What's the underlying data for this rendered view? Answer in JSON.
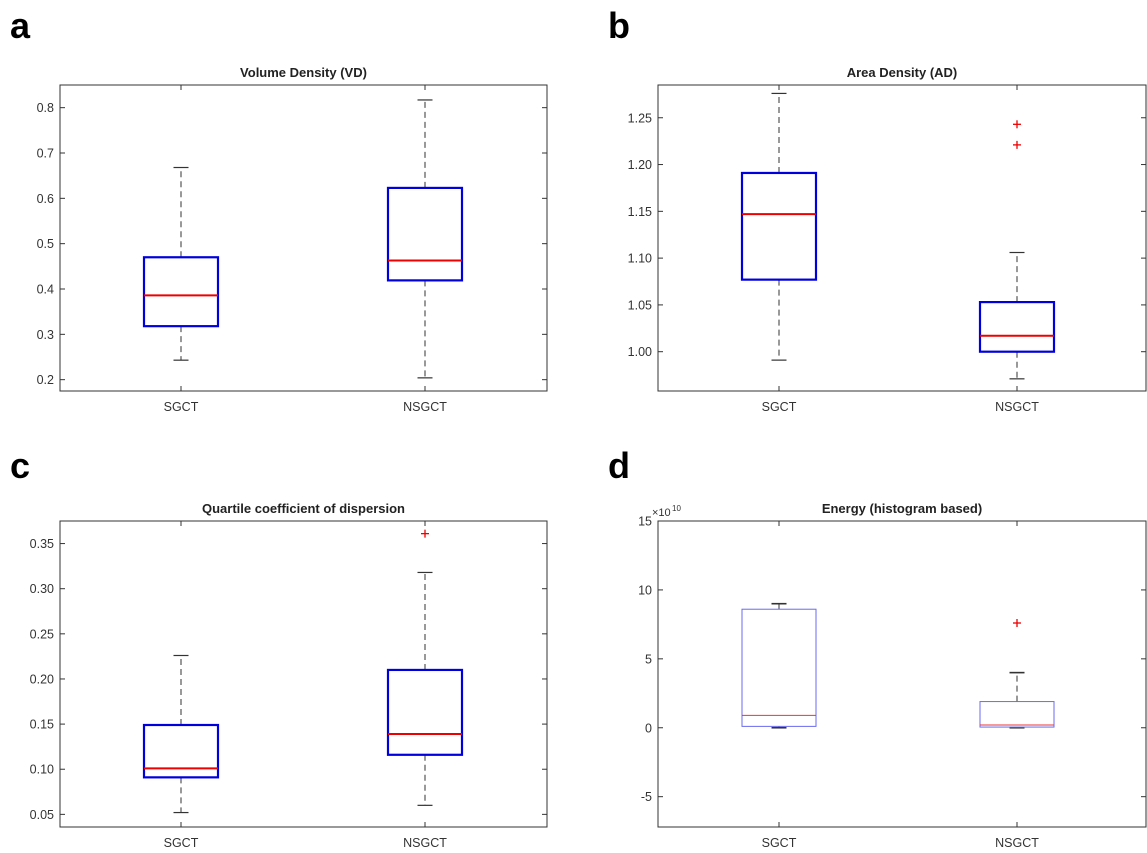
{
  "panel_letters": [
    "a",
    "b",
    "c",
    "d"
  ],
  "chart_data": [
    {
      "type": "box",
      "title": "Volume Density (VD)",
      "categories": [
        "SGCT",
        "NSGCT"
      ],
      "ylim": [
        0.175,
        0.85
      ],
      "yticks": [
        0.2,
        0.3,
        0.4,
        0.5,
        0.6,
        0.7,
        0.8
      ],
      "ytick_labels": [
        "0.2",
        "0.3",
        "0.4",
        "0.5",
        "0.6",
        "0.7",
        "0.8"
      ],
      "style": "bold",
      "boxes": [
        {
          "category": "SGCT",
          "min": 0.243,
          "q1": 0.318,
          "median": 0.386,
          "q3": 0.47,
          "max": 0.668,
          "outliers": []
        },
        {
          "category": "NSGCT",
          "min": 0.204,
          "q1": 0.419,
          "median": 0.463,
          "q3": 0.623,
          "max": 0.817,
          "outliers": []
        }
      ],
      "colors": {
        "box": "#0000dd",
        "median": "#ee0000",
        "whisker": "#333333",
        "outlier": "#ee0000"
      }
    },
    {
      "type": "box",
      "title": "Area Density (AD)",
      "categories": [
        "SGCT",
        "NSGCT"
      ],
      "ylim": [
        0.958,
        1.285
      ],
      "yticks": [
        1.0,
        1.05,
        1.1,
        1.15,
        1.2,
        1.25
      ],
      "ytick_labels": [
        "1.00",
        "1.05",
        "1.10",
        "1.15",
        "1.20",
        "1.25"
      ],
      "style": "bold",
      "boxes": [
        {
          "category": "SGCT",
          "min": 0.991,
          "q1": 1.077,
          "median": 1.147,
          "q3": 1.191,
          "max": 1.276,
          "outliers": []
        },
        {
          "category": "NSGCT",
          "min": 0.971,
          "q1": 1.0,
          "median": 1.017,
          "q3": 1.053,
          "max": 1.106,
          "outliers": [
            1.221,
            1.243
          ]
        }
      ],
      "colors": {
        "box": "#0000dd",
        "median": "#ee0000",
        "whisker": "#333333",
        "outlier": "#ee0000"
      }
    },
    {
      "type": "box",
      "title": "Quartile coefficient of dispersion",
      "categories": [
        "SGCT",
        "NSGCT"
      ],
      "ylim": [
        0.036,
        0.375
      ],
      "yticks": [
        0.05,
        0.1,
        0.15,
        0.2,
        0.25,
        0.3,
        0.35
      ],
      "ytick_labels": [
        "0.05",
        "0.10",
        "0.15",
        "0.20",
        "0.25",
        "0.30",
        "0.35"
      ],
      "style": "bold",
      "boxes": [
        {
          "category": "SGCT",
          "min": 0.052,
          "q1": 0.091,
          "median": 0.101,
          "q3": 0.149,
          "max": 0.226,
          "outliers": []
        },
        {
          "category": "NSGCT",
          "min": 0.06,
          "q1": 0.116,
          "median": 0.139,
          "q3": 0.21,
          "max": 0.318,
          "outliers": [
            0.361
          ]
        }
      ],
      "colors": {
        "box": "#0000dd",
        "median": "#ee0000",
        "whisker": "#333333",
        "outlier": "#ee0000"
      }
    },
    {
      "type": "box",
      "title": "Energy (histogram based)",
      "categories": [
        "SGCT",
        "NSGCT"
      ],
      "ylim": [
        -7.2,
        15
      ],
      "yticks": [
        -5,
        0,
        5,
        10,
        15
      ],
      "ytick_labels": [
        "-5",
        "0",
        "5",
        "10",
        "15"
      ],
      "y_exponent_base": "×10",
      "y_exponent_power": "10",
      "style": "thin",
      "boxes": [
        {
          "category": "SGCT",
          "min": 0.0,
          "q1": 0.1,
          "median": 0.9,
          "q3": 8.6,
          "max": 9.0,
          "outliers": []
        },
        {
          "category": "NSGCT",
          "min": 0.0,
          "q1": 0.05,
          "median": 0.2,
          "q3": 1.9,
          "max": 4.0,
          "outliers": [
            7.6
          ]
        }
      ],
      "colors": {
        "box": "#6a6af0",
        "median": "#ee3333",
        "whisker": "#333333",
        "outlier": "#ee0000"
      }
    }
  ]
}
